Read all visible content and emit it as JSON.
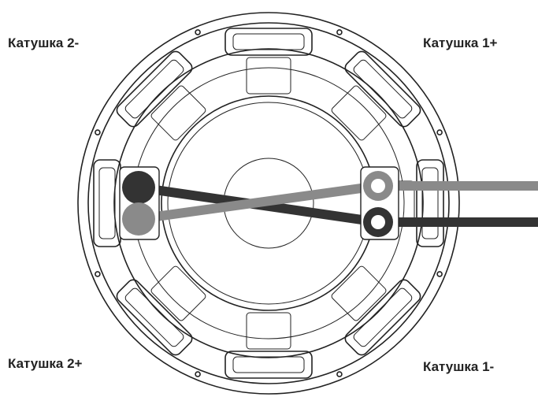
{
  "labels": [
    "Катушка 2-",
    "Катушка 1+",
    "Катушка 2+",
    "Катушка 1-"
  ]
}
